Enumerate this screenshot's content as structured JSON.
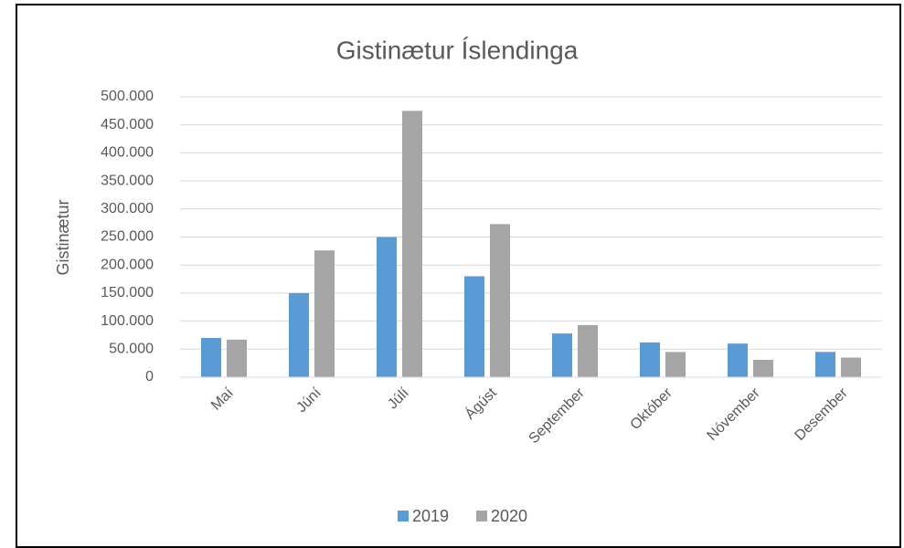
{
  "chart_data": {
    "type": "bar",
    "title": "Gistinætur Íslendinga",
    "y_label": "Gistinætur",
    "categories": [
      "Maí",
      "Júní",
      "Júlí",
      "Ágúst",
      "September",
      "Október",
      "Nóvember",
      "Desember"
    ],
    "series": [
      {
        "name": "2019",
        "color": "#5b9bd5",
        "values": [
          70000,
          150000,
          250000,
          180000,
          78000,
          62000,
          60000,
          45000
        ]
      },
      {
        "name": "2020",
        "color": "#a5a5a5",
        "values": [
          67000,
          226000,
          475000,
          273000,
          93000,
          45000,
          31000,
          35000
        ]
      }
    ],
    "ylim": [
      0,
      500000
    ],
    "yticks": [
      0,
      {
        "value": 50000,
        "label": "50.000"
      },
      {
        "value": 100000,
        "label": "100.000"
      },
      {
        "value": 150000,
        "label": "150.000"
      },
      {
        "value": 200000,
        "label": "200.000"
      },
      {
        "value": 250000,
        "label": "250.000"
      },
      {
        "value": 300000,
        "label": "300.000"
      },
      {
        "value": 350000,
        "label": "350.000"
      },
      {
        "value": 400000,
        "label": "400.000"
      },
      {
        "value": 450000,
        "label": "450.000"
      },
      {
        "value": 500000,
        "label": "500.000"
      }
    ],
    "grid": true,
    "legend": "bottom"
  }
}
